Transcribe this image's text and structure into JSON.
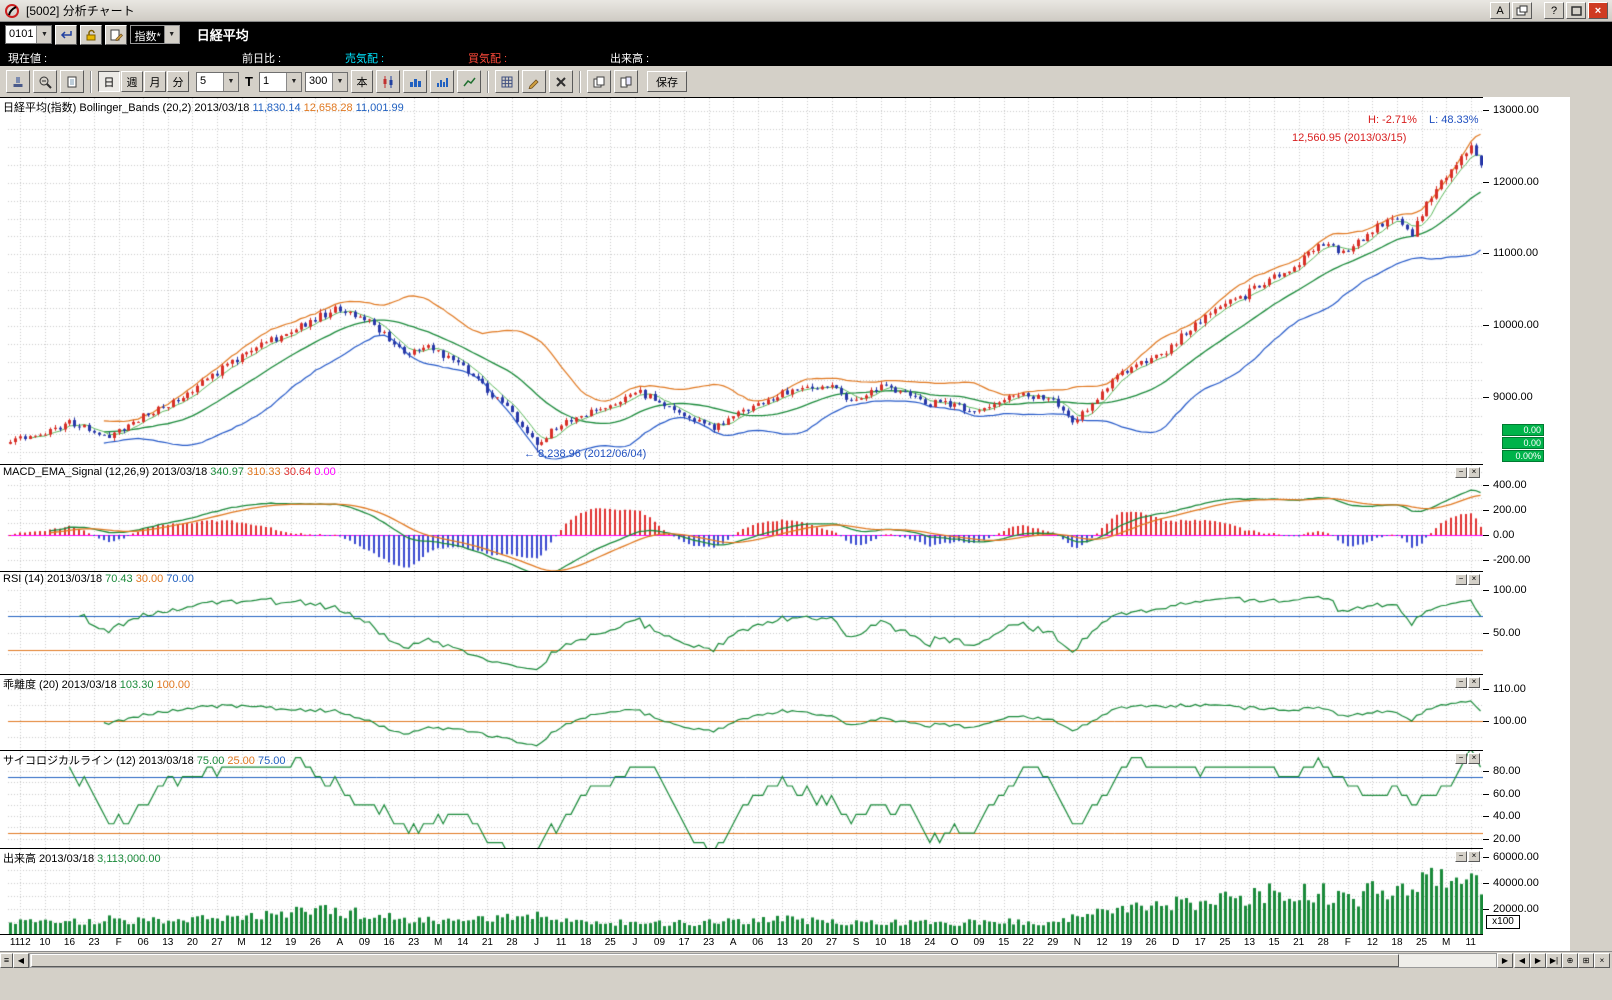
{
  "window": {
    "title": "[5002]  分析チャート",
    "buttons": {
      "font": "A",
      "help": "?"
    }
  },
  "icons": {
    "dropdown": "▼",
    "close": "×",
    "minus": "−",
    "left_arrow": "◀",
    "right_arrow": "▶",
    "end_arrow": "▶|",
    "zoom_plus": "⊕",
    "grid_box": "⊞",
    "grip": "≡"
  },
  "quote_bar": {
    "code": "0101",
    "index_select": "指数*",
    "name": "日経平均"
  },
  "info_bar": {
    "current_label": "現在値 :",
    "prev_diff_label": "前日比 :",
    "ask_label": "売気配 :",
    "bid_label": "買気配 :",
    "volume_label": "出来高 :"
  },
  "toolbar": {
    "period_buttons": [
      "日",
      "週",
      "月",
      "分"
    ],
    "period_active": "日",
    "minute_value": "5",
    "t_label": "T",
    "interval_value": "1",
    "bars_value": "300",
    "bars_unit": "本",
    "save_label": "保存"
  },
  "chart_data": {
    "type": "candlestick",
    "symbol": "日経平均(指数)",
    "indicator_date": "2013/03/18",
    "bars": 300,
    "colors": {
      "up": "#d83028",
      "down": "#2838a8",
      "boll_mid": "#1a8a3a",
      "boll_upper": "#e07820",
      "boll_lower": "#2458c8",
      "ma_short": "#5cb85c",
      "macd": "#1a8a3a",
      "macd_signal": "#e07820",
      "hist_pos": "#e03030",
      "hist_neg": "#3a4ad0",
      "zero_line": "#ff00ff",
      "rsi": "#1a8a3a",
      "kairi": "#1a8a3a",
      "psych": "#1a8a3a",
      "volume": "#1a8a3a",
      "ref_blue": "#2060c0",
      "ref_orange": "#e07820",
      "grid": "#c9c9c9"
    },
    "x_labels": [
      "1112",
      "10",
      "16",
      "23",
      "F",
      "06",
      "13",
      "20",
      "27",
      "M",
      "12",
      "19",
      "26",
      "A",
      "09",
      "16",
      "23",
      "M",
      "14",
      "21",
      "28",
      "J",
      "11",
      "18",
      "25",
      "J",
      "09",
      "17",
      "23",
      "A",
      "06",
      "13",
      "20",
      "27",
      "S",
      "10",
      "18",
      "24",
      "O",
      "09",
      "15",
      "22",
      "29",
      "N",
      "12",
      "19",
      "26",
      "D",
      "17",
      "25",
      "13",
      "15",
      "21",
      "28",
      "F",
      "12",
      "18",
      "25",
      "M",
      "11"
    ],
    "price_anchors": [
      [
        0,
        8430
      ],
      [
        6,
        8500
      ],
      [
        12,
        8650
      ],
      [
        20,
        8480
      ],
      [
        26,
        8700
      ],
      [
        33,
        8950
      ],
      [
        40,
        9250
      ],
      [
        47,
        9600
      ],
      [
        53,
        9800
      ],
      [
        57,
        9920
      ],
      [
        61,
        10080
      ],
      [
        66,
        10230
      ],
      [
        70,
        10130
      ],
      [
        74,
        10030
      ],
      [
        80,
        9620
      ],
      [
        85,
        9740
      ],
      [
        91,
        9470
      ],
      [
        97,
        9100
      ],
      [
        102,
        8780
      ],
      [
        105,
        8550
      ],
      [
        107,
        8330
      ],
      [
        110,
        8540
      ],
      [
        113,
        8680
      ],
      [
        118,
        8800
      ],
      [
        122,
        8900
      ],
      [
        127,
        9090
      ],
      [
        131,
        8990
      ],
      [
        134,
        8870
      ],
      [
        138,
        8720
      ],
      [
        143,
        8560
      ],
      [
        148,
        8800
      ],
      [
        153,
        8950
      ],
      [
        158,
        9090
      ],
      [
        163,
        9130
      ],
      [
        166,
        9170
      ],
      [
        169,
        9060
      ],
      [
        171,
        8980
      ],
      [
        174,
        9060
      ],
      [
        177,
        9140
      ],
      [
        180,
        9110
      ],
      [
        183,
        9030
      ],
      [
        186,
        8900
      ],
      [
        190,
        8950
      ],
      [
        193,
        8870
      ],
      [
        196,
        8770
      ],
      [
        199,
        8870
      ],
      [
        202,
        9000
      ],
      [
        206,
        9060
      ],
      [
        209,
        9010
      ],
      [
        212,
        8950
      ],
      [
        214,
        8820
      ],
      [
        216,
        8670
      ],
      [
        218,
        8770
      ],
      [
        220,
        8950
      ],
      [
        223,
        9150
      ],
      [
        226,
        9380
      ],
      [
        229,
        9440
      ],
      [
        232,
        9510
      ],
      [
        235,
        9650
      ],
      [
        238,
        9850
      ],
      [
        241,
        10020
      ],
      [
        245,
        10230
      ],
      [
        248,
        10330
      ],
      [
        251,
        10430
      ],
      [
        254,
        10550
      ],
      [
        257,
        10690
      ],
      [
        260,
        10800
      ],
      [
        263,
        10930
      ],
      [
        265,
        11050
      ],
      [
        267,
        11130
      ],
      [
        269,
        11070
      ],
      [
        271,
        11010
      ],
      [
        274,
        11150
      ],
      [
        277,
        11330
      ],
      [
        279,
        11420
      ],
      [
        281,
        11510
      ],
      [
        283,
        11400
      ],
      [
        285,
        11300
      ],
      [
        287,
        11550
      ],
      [
        289,
        11820
      ],
      [
        291,
        12000
      ],
      [
        293,
        12180
      ],
      [
        295,
        12380
      ],
      [
        297,
        12520
      ],
      [
        298,
        12420
      ],
      [
        299,
        12240
      ]
    ],
    "volume_anchors": [
      [
        0,
        11000
      ],
      [
        10,
        9500
      ],
      [
        20,
        12000
      ],
      [
        30,
        10500
      ],
      [
        40,
        13000
      ],
      [
        50,
        15000
      ],
      [
        57,
        17000
      ],
      [
        66,
        19000
      ],
      [
        74,
        14000
      ],
      [
        80,
        12500
      ],
      [
        91,
        11000
      ],
      [
        100,
        13000
      ],
      [
        107,
        17500
      ],
      [
        115,
        10500
      ],
      [
        125,
        9500
      ],
      [
        135,
        9000
      ],
      [
        145,
        10000
      ],
      [
        158,
        12000
      ],
      [
        166,
        10500
      ],
      [
        177,
        9500
      ],
      [
        190,
        9000
      ],
      [
        202,
        10500
      ],
      [
        212,
        9500
      ],
      [
        216,
        13000
      ],
      [
        222,
        17000
      ],
      [
        228,
        20000
      ],
      [
        234,
        22000
      ],
      [
        240,
        25000
      ],
      [
        247,
        27000
      ],
      [
        253,
        30000
      ],
      [
        259,
        33000
      ],
      [
        263,
        36000
      ],
      [
        267,
        31000
      ],
      [
        271,
        27000
      ],
      [
        275,
        31000
      ],
      [
        279,
        35000
      ],
      [
        283,
        39000
      ],
      [
        286,
        43000
      ],
      [
        288,
        37000
      ],
      [
        290,
        47000
      ],
      [
        292,
        40000
      ],
      [
        294,
        36000
      ],
      [
        296,
        45000
      ],
      [
        298,
        36000
      ],
      [
        299,
        31130
      ]
    ],
    "low_point": {
      "bar": 107,
      "value": 8238.96
    },
    "high_point": {
      "bar": 297,
      "value": 12560.95
    },
    "panels": [
      {
        "id": "price",
        "header": [
          {
            "t": "日経平均(指数) Bollinger_Bands (20,2) 2013/03/18 ",
            "c": "#000000"
          },
          {
            "t": "11,830.14 ",
            "c": "#2060c0"
          },
          {
            "t": "12,658.28 ",
            "c": "#e07820"
          },
          {
            "t": "11,001.99",
            "c": "#2060c0"
          }
        ],
        "scale": {
          "min": 8050,
          "max": 13180
        },
        "grid": {
          "from": 8250,
          "to": 13000,
          "step": 250
        },
        "ticks": [
          {
            "v": 13000,
            "label": "13000.00"
          },
          {
            "v": 12000,
            "label": "12000.00"
          },
          {
            "v": 11000,
            "label": "11000.00"
          },
          {
            "v": 10000,
            "label": "10000.00"
          },
          {
            "v": 9000,
            "label": "9000.00"
          }
        ],
        "ref_lines": [],
        "annotations": {
          "high_pct": "H: -2.71%",
          "low_pct": "L: 48.33%",
          "high_label": "12,560.95 (2013/03/15)",
          "low_label": "← 8,238.96 (2012/06/04)"
        },
        "badges": [
          "0.00",
          "0.00",
          "0.00%"
        ]
      },
      {
        "id": "macd",
        "header": [
          {
            "t": "MACD_EMA_Signal (12,26,9) 2013/03/18 ",
            "c": "#000000"
          },
          {
            "t": "340.97 ",
            "c": "#1a8a3a"
          },
          {
            "t": "310.33 ",
            "c": "#e07820"
          },
          {
            "t": "30.64 ",
            "c": "#e03030"
          },
          {
            "t": "0.00",
            "c": "#ff00ff"
          }
        ],
        "scale": {
          "min": -296,
          "max": 560
        },
        "grid": {
          "from": -200,
          "to": 500,
          "step": 100
        },
        "ticks": [
          {
            "v": 400,
            "label": "400.00"
          },
          {
            "v": 200,
            "label": "200.00"
          },
          {
            "v": 0,
            "label": "0.00"
          },
          {
            "v": -200,
            "label": "-200.00"
          }
        ],
        "ref_lines": [
          {
            "v": 0,
            "color": "#ff00ff"
          }
        ]
      },
      {
        "id": "rsi",
        "header": [
          {
            "t": "RSI (14) 2013/03/18 ",
            "c": "#000000"
          },
          {
            "t": "70.43 ",
            "c": "#1a8a3a"
          },
          {
            "t": "30.00 ",
            "c": "#e07820"
          },
          {
            "t": "70.00",
            "c": "#2060c0"
          }
        ],
        "scale": {
          "min": 1,
          "max": 121
        },
        "grid": {
          "from": 25,
          "to": 100,
          "step": 25
        },
        "ticks": [
          {
            "v": 100,
            "label": "100.00"
          },
          {
            "v": 50,
            "label": "50.00"
          }
        ],
        "ref_lines": [
          {
            "v": 70,
            "color": "#2060c0"
          },
          {
            "v": 30,
            "color": "#e07820"
          }
        ]
      },
      {
        "id": "kairi",
        "header": [
          {
            "t": "乖離度 (20) 2013/03/18 ",
            "c": "#000000"
          },
          {
            "t": "103.30 ",
            "c": "#1a8a3a"
          },
          {
            "t": "100.00",
            "c": "#e07820"
          }
        ],
        "scale": {
          "min": 90.6,
          "max": 114.4
        },
        "grid": {
          "from": 95,
          "to": 110,
          "step": 5
        },
        "ticks": [
          {
            "v": 110,
            "label": "110.00"
          },
          {
            "v": 100,
            "label": "100.00"
          }
        ],
        "ref_lines": [
          {
            "v": 100,
            "color": "#e07820"
          }
        ]
      },
      {
        "id": "psych",
        "header": [
          {
            "t": "サイコロジカルライン (12) 2013/03/18 ",
            "c": "#000000"
          },
          {
            "t": "75.00 ",
            "c": "#1a8a3a"
          },
          {
            "t": "25.00 ",
            "c": "#e07820"
          },
          {
            "t": "75.00",
            "c": "#2060c0"
          }
        ],
        "scale": {
          "min": 11,
          "max": 97.6
        },
        "grid": {
          "from": 20,
          "to": 90,
          "step": 10
        },
        "ticks": [
          {
            "v": 80,
            "label": "80.00"
          },
          {
            "v": 60,
            "label": "60.00"
          },
          {
            "v": 40,
            "label": "40.00"
          },
          {
            "v": 20,
            "label": "20.00"
          }
        ],
        "ref_lines": [
          {
            "v": 75,
            "color": "#2060c0"
          },
          {
            "v": 25,
            "color": "#e07820"
          }
        ]
      },
      {
        "id": "volume",
        "header": [
          {
            "t": "出来高 2013/03/18 ",
            "c": "#000000"
          },
          {
            "t": "3,113,000.00",
            "c": "#1a8a3a"
          }
        ],
        "scale": {
          "min": 0,
          "max": 66000
        },
        "grid": {
          "from": 10000,
          "to": 60000,
          "step": 10000
        },
        "ticks": [
          {
            "v": 60000,
            "label": "60000.00"
          },
          {
            "v": 40000,
            "label": "40000.00"
          },
          {
            "v": 20000,
            "label": "20000.00"
          }
        ],
        "ref_lines": [],
        "unit_badge": "x100"
      }
    ]
  }
}
